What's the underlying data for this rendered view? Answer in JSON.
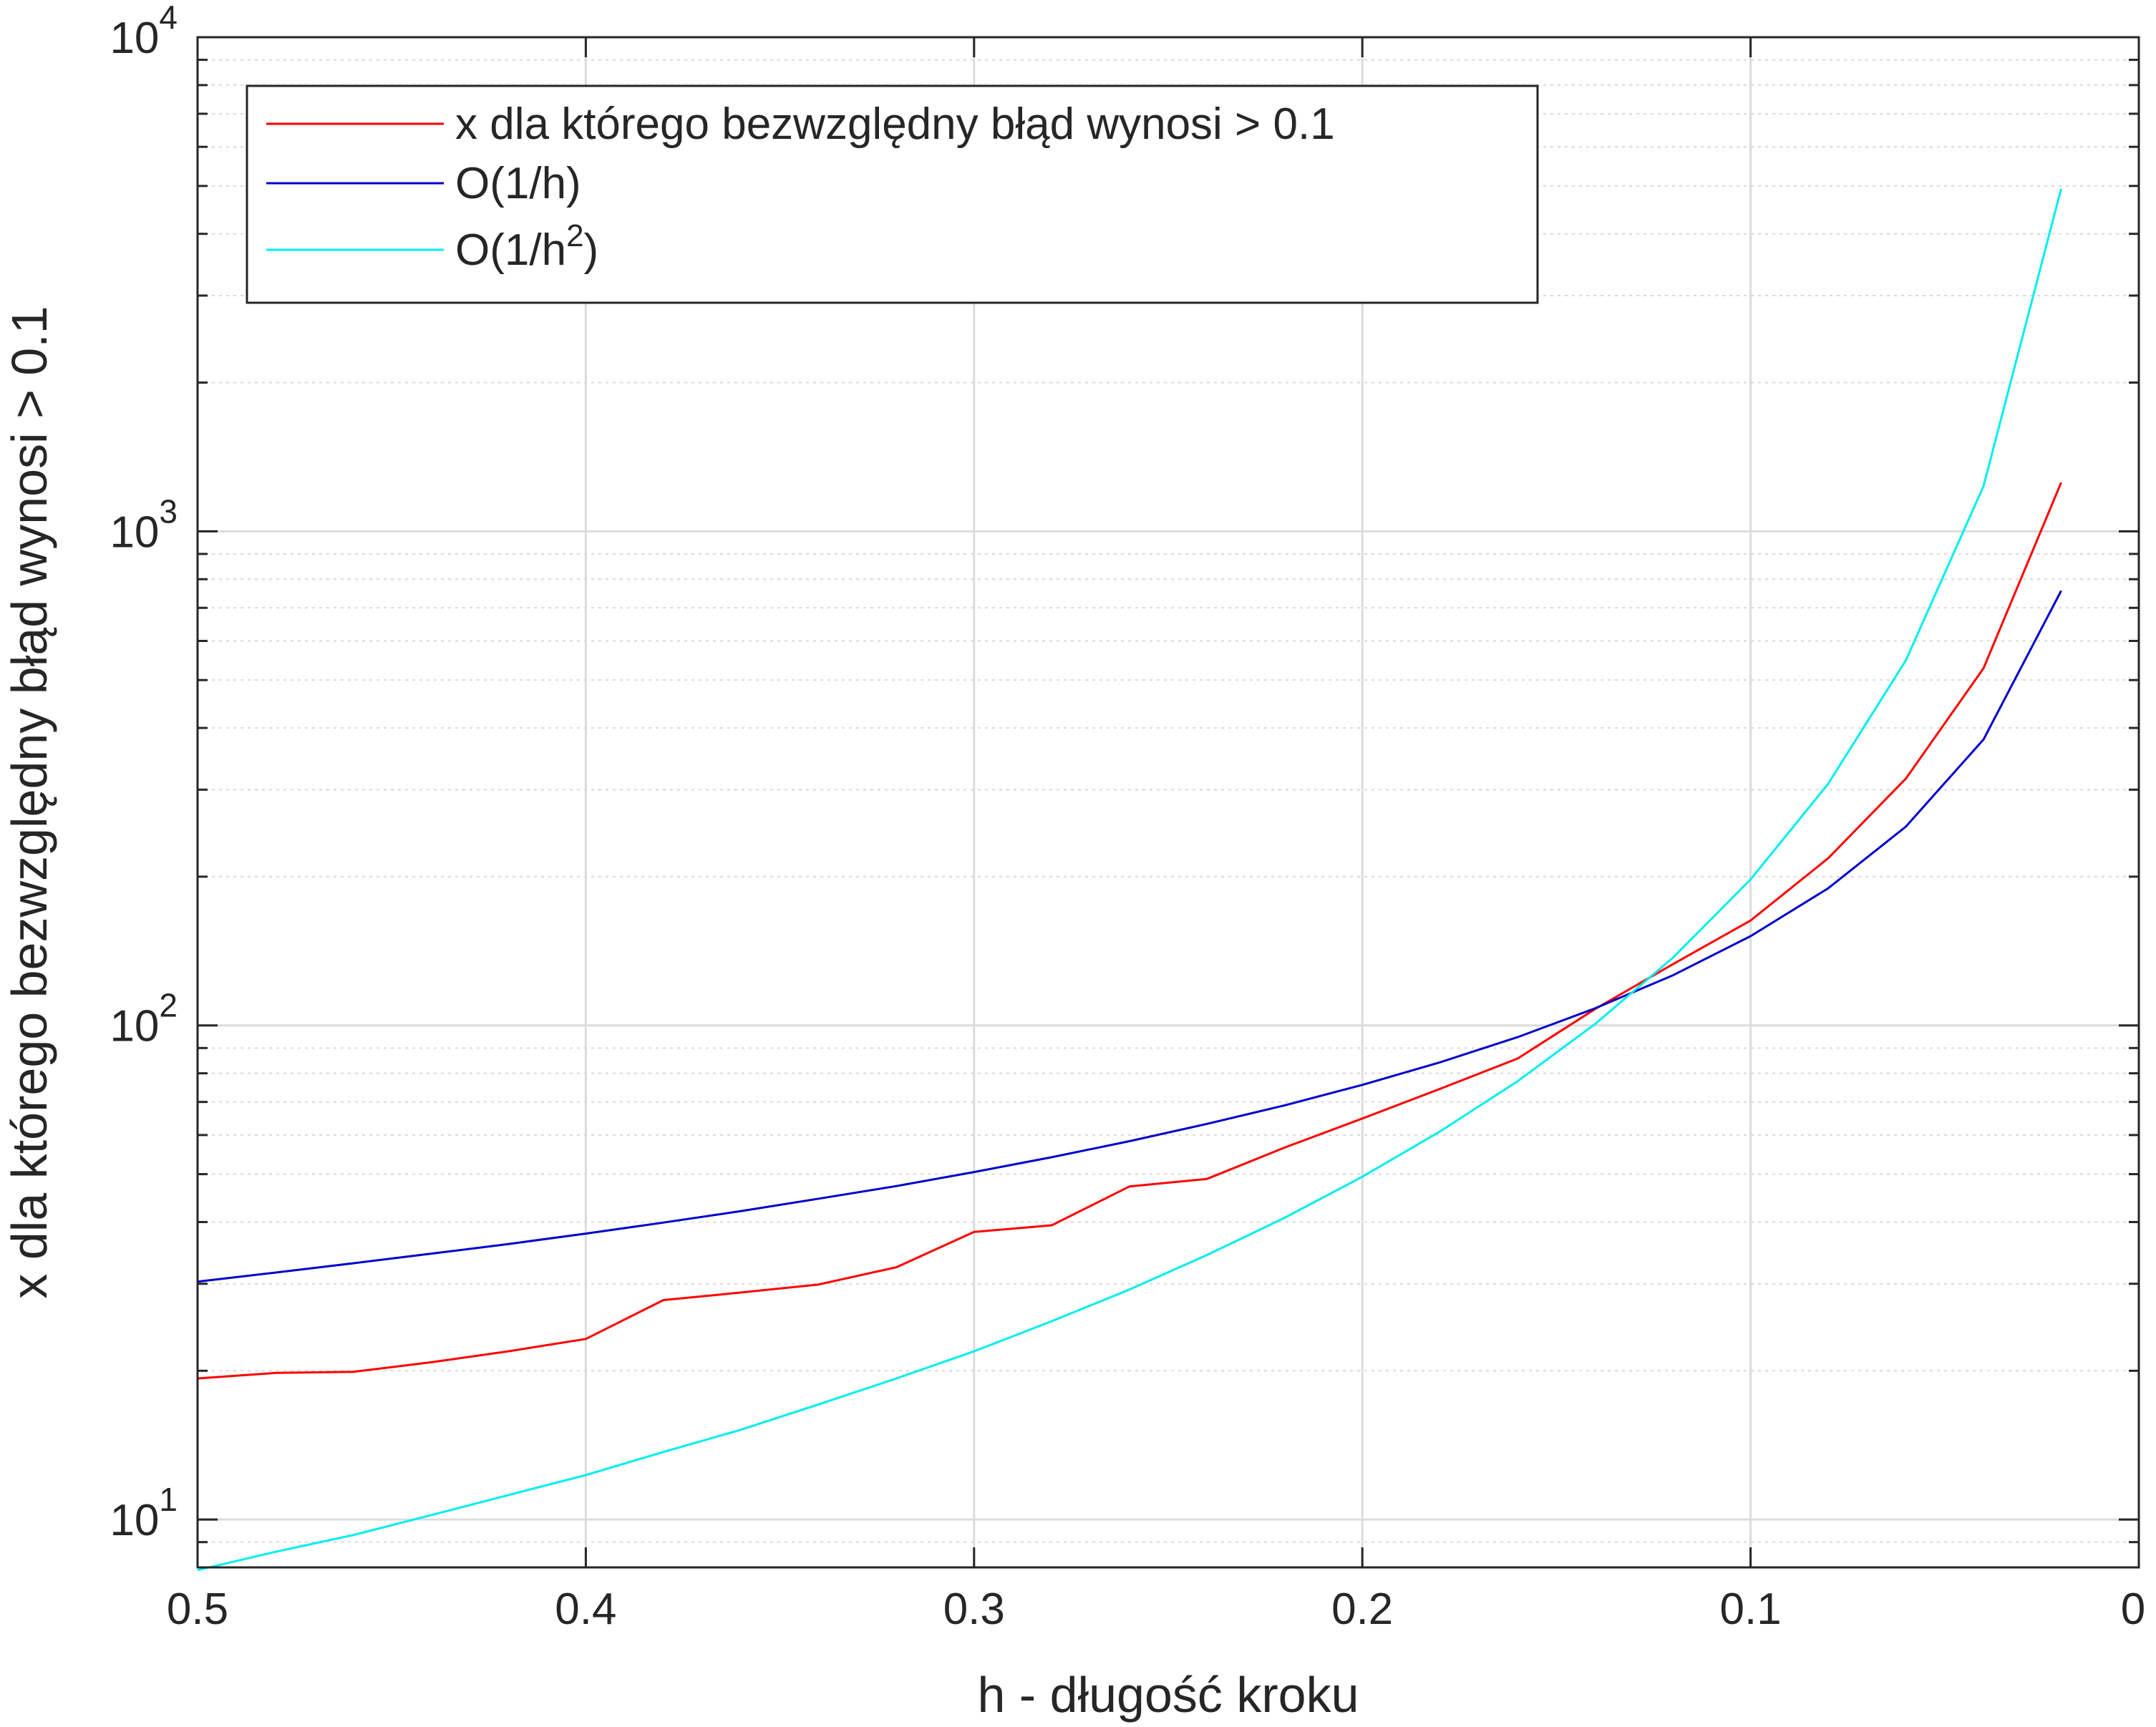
{
  "chart_data": {
    "type": "line",
    "title": "",
    "xlabel": "h - długość kroku",
    "ylabel": "x dla którego bezwzględny błąd wynosi > 0.1",
    "xlim": [
      0.5,
      0
    ],
    "x_reversed": true,
    "yscale": "log",
    "ylim": [
      8,
      10000
    ],
    "grid": true,
    "minor_grid_y": true,
    "x_ticks": [
      {
        "value": 0.5,
        "label": "0.5"
      },
      {
        "value": 0.4,
        "label": "0.4"
      },
      {
        "value": 0.3,
        "label": "0.3"
      },
      {
        "value": 0.2,
        "label": "0.2"
      },
      {
        "value": 0.1,
        "label": "0.1"
      },
      {
        "value": 0,
        "label": "0"
      }
    ],
    "y_ticks": [
      {
        "value": 10,
        "base": "10",
        "exp": "1"
      },
      {
        "value": 100,
        "base": "10",
        "exp": "2"
      },
      {
        "value": 1000,
        "base": "10",
        "exp": "3"
      },
      {
        "value": 10000,
        "base": "10",
        "exp": "4"
      }
    ],
    "legend": {
      "location": "top-left",
      "entries": [
        {
          "series": 0,
          "label": "x dla którego bezwzględny błąd wynosi > 0.1"
        },
        {
          "series": 1,
          "label": "O(1/h)"
        },
        {
          "series": 2,
          "label_base": "O(1/h",
          "label_sup": "2",
          "label_tail": ")"
        }
      ]
    },
    "series": [
      {
        "name": "x dla którego bezwzględny błąd wynosi > 0.1",
        "color": "#ff0000",
        "x": [
          0.5,
          0.48,
          0.46,
          0.44,
          0.42,
          0.4,
          0.38,
          0.36,
          0.34,
          0.32,
          0.3,
          0.28,
          0.26,
          0.24,
          0.22,
          0.2,
          0.18,
          0.16,
          0.14,
          0.12,
          0.1,
          0.08,
          0.06,
          0.04,
          0.02
        ],
        "values": [
          19.3,
          19.8,
          19.9,
          20.8,
          21.9,
          23.2,
          27.8,
          28.8,
          29.9,
          32.4,
          38.2,
          39.4,
          47.2,
          48.9,
          56.6,
          64.8,
          74.4,
          85.7,
          108,
          133,
          163,
          218,
          316,
          528,
          1255
        ]
      },
      {
        "name": "O(1/h)",
        "color": "#0000cd",
        "x": [
          0.5,
          0.48,
          0.46,
          0.44,
          0.42,
          0.4,
          0.38,
          0.36,
          0.34,
          0.32,
          0.3,
          0.28,
          0.26,
          0.24,
          0.22,
          0.2,
          0.18,
          0.16,
          0.14,
          0.12,
          0.1,
          0.08,
          0.06,
          0.04,
          0.02
        ],
        "values": [
          30.3,
          31.6,
          33,
          34.5,
          36.1,
          37.9,
          39.9,
          42.1,
          44.6,
          47.3,
          50.5,
          54.1,
          58.3,
          63.2,
          68.9,
          75.8,
          84.2,
          94.7,
          108.3,
          126.3,
          151.6,
          189.5,
          252.6,
          378.9,
          757.9
        ]
      },
      {
        "name": "O(1/h^2)",
        "color": "#00eeee",
        "x": [
          0.5,
          0.48,
          0.46,
          0.44,
          0.42,
          0.4,
          0.38,
          0.36,
          0.34,
          0.32,
          0.3,
          0.28,
          0.26,
          0.24,
          0.22,
          0.2,
          0.18,
          0.16,
          0.14,
          0.12,
          0.1,
          0.08,
          0.06,
          0.04,
          0.02
        ],
        "values": [
          7.9,
          8.6,
          9.3,
          10.2,
          11.2,
          12.3,
          13.7,
          15.2,
          17.1,
          19.3,
          21.9,
          25.2,
          29.2,
          34.3,
          40.8,
          49.4,
          61,
          77.1,
          100.7,
          137.1,
          197.4,
          308.5,
          548.4,
          1233.9,
          4935.5
        ]
      }
    ]
  }
}
